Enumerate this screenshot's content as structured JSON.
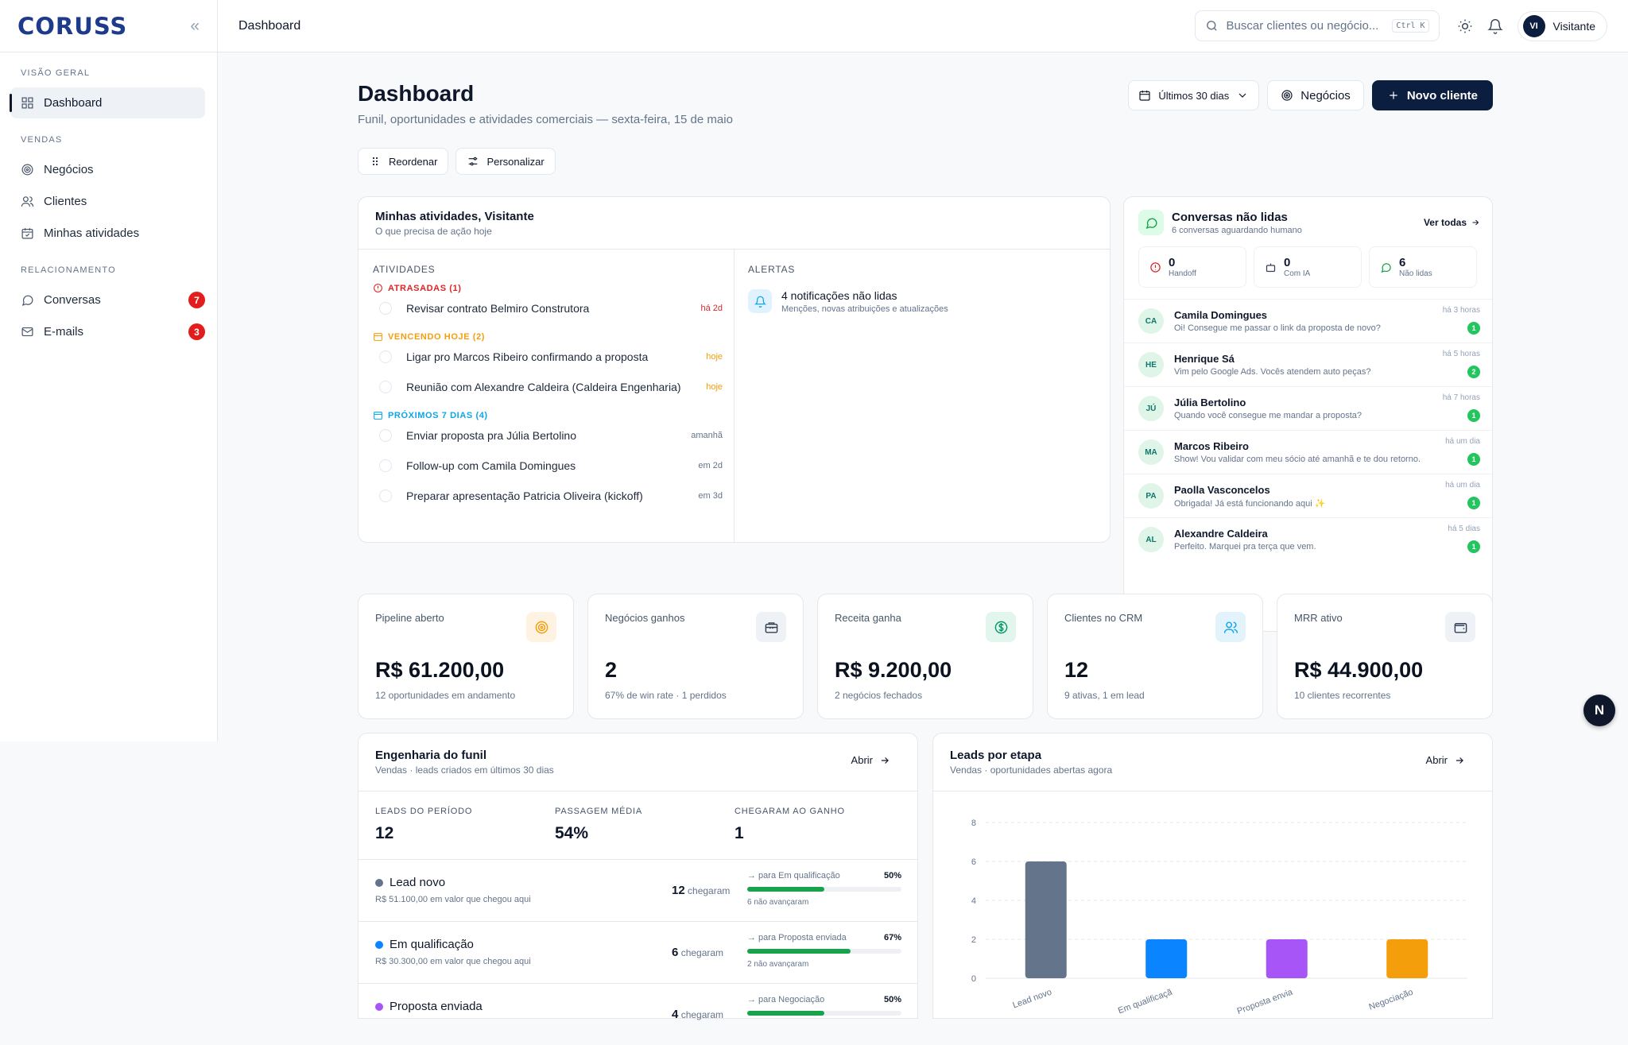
{
  "brand": {
    "logo": "CORUSS",
    "collapse": "«"
  },
  "sidebar": {
    "sections": [
      {
        "label": "VISÃO GERAL"
      },
      {
        "label": "VENDAS"
      },
      {
        "label": "RELACIONAMENTO"
      }
    ],
    "items": [
      {
        "label": "Dashboard",
        "icon": "grid-icon",
        "active": true
      },
      {
        "label": "Negócios",
        "icon": "target-icon"
      },
      {
        "label": "Clientes",
        "icon": "users-icon"
      },
      {
        "label": "Minhas atividades",
        "icon": "calendar-icon"
      },
      {
        "label": "Conversas",
        "icon": "chat-icon",
        "badge": "7"
      },
      {
        "label": "E-mails",
        "icon": "mail-icon",
        "badge": "3"
      }
    ]
  },
  "topbar": {
    "breadcrumb": "Dashboard",
    "search_placeholder": "Buscar clientes ou negócio...",
    "shortcut": "Ctrl K",
    "user_initials": "VI",
    "user_name": "Visitante"
  },
  "header": {
    "title": "Dashboard",
    "subtitle": "Funil, oportunidades e atividades comerciais — sexta-feira, 15 de maio",
    "period": "Últimos 30 dias",
    "deals_button": "Negócios",
    "new_button": "Novo cliente",
    "reorder": "Reordenar",
    "customize": "Personalizar"
  },
  "activities": {
    "title": "Minhas atividades, Visitante",
    "subtitle": "O que precisa de ação hoje",
    "col_activities": "ATIVIDADES",
    "col_alerts": "ALERTAS",
    "overdue_label": "ATRASADAS (1)",
    "today_label": "VENCENDO HOJE (2)",
    "next_label": "PRÓXIMOS 7 DIAS (4)",
    "overdue": [
      {
        "text": "Revisar contrato Belmiro Construtora",
        "when": "há 2d"
      }
    ],
    "today": [
      {
        "text": "Ligar pro Marcos Ribeiro confirmando a proposta",
        "when": "hoje"
      },
      {
        "text": "Reunião com Alexandre Caldeira (Caldeira Engenharia)",
        "when": "hoje"
      }
    ],
    "next": [
      {
        "text": "Enviar proposta pra Júlia Bertolino",
        "when": "amanhã"
      },
      {
        "text": "Follow-up com Camila Domingues",
        "when": "em 2d"
      },
      {
        "text": "Preparar apresentação Patricia Oliveira (kickoff)",
        "when": "em 3d"
      }
    ],
    "alert_title": "4 notificações não lidas",
    "alert_sub": "Menções, novas atribuições e atualizações"
  },
  "conversations": {
    "title": "Conversas não lidas",
    "subtitle": "6 conversas aguardando humano",
    "see_all": "Ver todas",
    "stats": [
      {
        "n": "0",
        "l": "Handoff"
      },
      {
        "n": "0",
        "l": "Com IA"
      },
      {
        "n": "6",
        "l": "Não lidas"
      }
    ],
    "rows": [
      {
        "ini": "CA",
        "name": "Camila Domingues",
        "msg": "Oi! Consegue me passar o link da proposta de novo?",
        "time": "há 3 horas",
        "count": "1"
      },
      {
        "ini": "HE",
        "name": "Henrique Sá",
        "msg": "Vim pelo Google Ads. Vocês atendem auto peças?",
        "time": "há 5 horas",
        "count": "2"
      },
      {
        "ini": "JÚ",
        "name": "Júlia Bertolino",
        "msg": "Quando você consegue me mandar a proposta?",
        "time": "há 7 horas",
        "count": "1"
      },
      {
        "ini": "MA",
        "name": "Marcos Ribeiro",
        "msg": "Show! Vou validar com meu sócio até amanhã e te dou retorno.",
        "time": "há um dia",
        "count": "1"
      },
      {
        "ini": "PA",
        "name": "Paolla Vasconcelos",
        "msg": "Obrigada! Já está funcionando aqui ✨",
        "time": "há um dia",
        "count": "1"
      },
      {
        "ini": "AL",
        "name": "Alexandre Caldeira",
        "msg": "Perfeito. Marquei pra terça que vem.",
        "time": "há 5 dias",
        "count": "1"
      }
    ]
  },
  "kpis": [
    {
      "label": "Pipeline aberto",
      "value": "R$ 61.200,00",
      "note": "12 oportunidades em andamento",
      "icon": "target-icon",
      "color": "#f59e0b",
      "bg": "#fef3e2"
    },
    {
      "label": "Negócios ganhos",
      "value": "2",
      "note": "67% de win rate · 1 perdidos",
      "icon": "briefcase-icon",
      "color": "#334155",
      "bg": "#eef1f5"
    },
    {
      "label": "Receita ganha",
      "value": "R$ 9.200,00",
      "note": "2 negócios fechados",
      "icon": "dollar-icon",
      "color": "#059669",
      "bg": "#e3f6ee"
    },
    {
      "label": "Clientes no CRM",
      "value": "12",
      "note": "9 ativas, 1 em lead",
      "icon": "users-icon",
      "color": "#0ea5e9",
      "bg": "#e3f3fb"
    },
    {
      "label": "MRR ativo",
      "value": "R$ 44.900,00",
      "note": "10 clientes recorrentes",
      "icon": "wallet-icon",
      "color": "#334155",
      "bg": "#eef1f5"
    }
  ],
  "funnel": {
    "title": "Engenharia do funil",
    "subtitle": "Vendas · leads criados em últimos 30 dias",
    "open": "Abrir",
    "metrics": [
      {
        "label": "LEADS DO PERÍODO",
        "value": "12"
      },
      {
        "label": "PASSAGEM MÉDIA",
        "value": "54%"
      },
      {
        "label": "CHEGARAM AO GANHO",
        "value": "1"
      }
    ],
    "reached_word": "chegaram",
    "stages": [
      {
        "name": "Lead novo",
        "color": "#64748b",
        "value_text": "R$ 51.100,00 em valor que chegou aqui",
        "count": "12",
        "to": "→ para Em qualificação",
        "pct": "50%",
        "pct_num": 0.5,
        "not_adv": "6 não avançaram"
      },
      {
        "name": "Em qualificação",
        "color": "#0a84ff",
        "value_text": "R$ 30.300,00 em valor que chegou aqui",
        "count": "6",
        "to": "→ para Proposta enviada",
        "pct": "67%",
        "pct_num": 0.67,
        "not_adv": "2 não avançaram"
      },
      {
        "name": "Proposta enviada",
        "color": "#a855f7",
        "value_text": "",
        "count": "4",
        "to": "→ para Negociação",
        "pct": "50%",
        "pct_num": 0.5,
        "not_adv": ""
      }
    ]
  },
  "leads_chart": {
    "title": "Leads por etapa",
    "subtitle": "Vendas · oportunidades abertas agora",
    "open": "Abrir"
  },
  "chart_data": {
    "type": "bar",
    "categories": [
      "Lead novo",
      "Em qualificaçã",
      "Proposta envia",
      "Negociação"
    ],
    "values": [
      6,
      2,
      2,
      2
    ],
    "colors": [
      "#64748b",
      "#0a84ff",
      "#a855f7",
      "#f59e0b"
    ],
    "ylim": [
      0,
      8
    ],
    "yticks": [
      0,
      2,
      4,
      6,
      8
    ],
    "grid": true
  },
  "fab": "N"
}
